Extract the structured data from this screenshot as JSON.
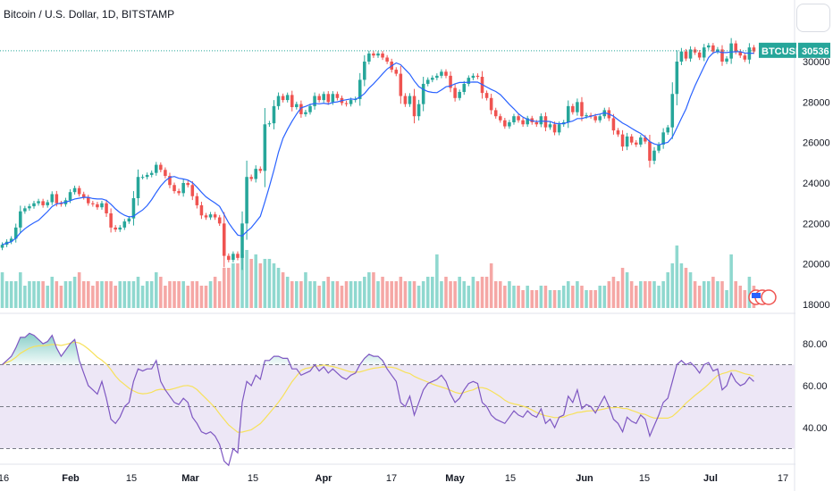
{
  "header": {
    "title": "Bitcoin / U.S. Dollar, 1D, BITSTAMP"
  },
  "price_tag": {
    "symbol": "BTCUSD",
    "price": "30536",
    "color": "#26a69a"
  },
  "colors": {
    "up": "#26a69a",
    "down": "#ef5350",
    "up_volume": "#8fd8cf",
    "down_volume": "#f5a7a5",
    "ma": "#2962ff",
    "rsi": "#7e57c2",
    "rsi_ma": "#f7e15a",
    "rsi_band": "#ede7f6"
  },
  "chart_data": [
    {
      "type": "candlestick",
      "title": "Bitcoin / U.S. Dollar, 1D, BITSTAMP",
      "ylim": [
        17500,
        31500
      ],
      "y_ticks": [
        "30000",
        "28000",
        "26000",
        "24000",
        "22000",
        "20000",
        "18000"
      ],
      "x_ticks": [
        "16",
        "Feb",
        "15",
        "Mar",
        "15",
        "Apr",
        "17",
        "May",
        "15",
        "Jun",
        "15",
        "Jul",
        "17"
      ],
      "last_price": 30536,
      "close": [
        20950,
        21100,
        21250,
        21800,
        22600,
        22750,
        22850,
        23000,
        23100,
        22900,
        23050,
        23450,
        23000,
        22950,
        23150,
        23550,
        23750,
        23450,
        23300,
        23000,
        22950,
        22800,
        23000,
        22500,
        21800,
        21700,
        21800,
        22100,
        22250,
        23250,
        24300,
        24300,
        24400,
        24500,
        24900,
        24650,
        24350,
        23900,
        23600,
        23500,
        24000,
        23900,
        23350,
        22900,
        22400,
        22300,
        22450,
        22300,
        22000,
        20400,
        20200,
        20500,
        20300,
        22000,
        24300,
        24200,
        24700,
        24600,
        26900,
        26950,
        27800,
        28300,
        28100,
        28350,
        27750,
        27900,
        27400,
        27500,
        27800,
        28300,
        28100,
        28400,
        28000,
        28400,
        28200,
        27950,
        27900,
        28100,
        28150,
        29100,
        30000,
        30400,
        30300,
        30400,
        30200,
        30000,
        29600,
        29400,
        28300,
        27900,
        28300,
        27300,
        27900,
        28900,
        29100,
        29200,
        29300,
        29500,
        29300,
        28700,
        28200,
        28500,
        28900,
        29200,
        29300,
        29250,
        28450,
        28200,
        27600,
        27300,
        27100,
        26800,
        27000,
        27300,
        27100,
        26900,
        27200,
        27000,
        26900,
        27300,
        26750,
        26900,
        26500,
        26900,
        27000,
        27800,
        27500,
        28000,
        27300,
        27350,
        27300,
        27100,
        27300,
        27600,
        27200,
        26600,
        26400,
        25800,
        26300,
        26000,
        25900,
        26250,
        26050,
        25100,
        25600,
        25900,
        26500,
        26750,
        28400,
        30000,
        30500,
        30150,
        30600,
        30450,
        30200,
        30700,
        30800,
        30500,
        30600,
        30000,
        30150,
        30900,
        30500,
        30300,
        30100,
        30700,
        30500
      ],
      "volume": [
        0.4,
        0.3,
        0.3,
        0.3,
        0.4,
        0.25,
        0.3,
        0.3,
        0.3,
        0.3,
        0.25,
        0.35,
        0.3,
        0.25,
        0.3,
        0.3,
        0.35,
        0.4,
        0.3,
        0.3,
        0.25,
        0.3,
        0.3,
        0.3,
        0.3,
        0.25,
        0.3,
        0.3,
        0.3,
        0.3,
        0.35,
        0.25,
        0.3,
        0.3,
        0.4,
        0.35,
        0.25,
        0.3,
        0.3,
        0.3,
        0.3,
        0.25,
        0.3,
        0.3,
        0.25,
        0.25,
        0.3,
        0.35,
        0.3,
        0.45,
        0.45,
        0.5,
        0.5,
        0.6,
        0.65,
        0.55,
        0.6,
        0.5,
        0.55,
        0.55,
        0.5,
        0.45,
        0.4,
        0.35,
        0.3,
        0.3,
        0.3,
        0.4,
        0.3,
        0.3,
        0.25,
        0.3,
        0.35,
        0.3,
        0.3,
        0.25,
        0.3,
        0.3,
        0.3,
        0.3,
        0.35,
        0.4,
        0.4,
        0.3,
        0.35,
        0.3,
        0.3,
        0.3,
        0.35,
        0.3,
        0.3,
        0.3,
        0.25,
        0.3,
        0.35,
        0.35,
        0.6,
        0.3,
        0.35,
        0.3,
        0.3,
        0.35,
        0.3,
        0.25,
        0.35,
        0.3,
        0.35,
        0.35,
        0.5,
        0.3,
        0.3,
        0.25,
        0.3,
        0.25,
        0.25,
        0.2,
        0.25,
        0.2,
        0.2,
        0.25,
        0.25,
        0.2,
        0.2,
        0.2,
        0.25,
        0.3,
        0.25,
        0.3,
        0.25,
        0.2,
        0.2,
        0.2,
        0.25,
        0.25,
        0.3,
        0.35,
        0.3,
        0.45,
        0.4,
        0.3,
        0.25,
        0.3,
        0.3,
        0.3,
        0.3,
        0.25,
        0.3,
        0.4,
        0.5,
        0.7,
        0.5,
        0.45,
        0.4,
        0.3,
        0.25,
        0.3,
        0.3,
        0.35,
        0.3,
        0.3,
        0.2,
        0.6,
        0.3,
        0.25,
        0.2,
        0.35,
        0.25
      ]
    },
    {
      "type": "line",
      "title": "RSI",
      "ylim": [
        27,
        91
      ],
      "y_ticks": [
        "80.00",
        "60.00",
        "40.00"
      ],
      "bands": [
        30,
        50,
        70
      ],
      "series": [
        {
          "values": [
            70,
            72,
            74,
            78,
            83,
            83,
            85,
            84,
            82,
            80,
            81,
            84,
            78,
            74,
            77,
            80,
            82,
            72,
            66,
            60,
            58,
            56,
            62,
            54,
            44,
            42,
            45,
            50,
            52,
            62,
            68,
            67,
            68,
            68,
            72,
            62,
            58,
            55,
            52,
            51,
            54,
            52,
            45,
            42,
            38,
            37,
            38,
            36,
            32,
            24,
            22,
            30,
            28,
            52,
            62,
            60,
            65,
            63,
            72,
            72,
            74,
            74,
            73,
            73,
            68,
            68,
            65,
            66,
            67,
            70,
            67,
            69,
            66,
            68,
            66,
            64,
            63,
            65,
            66,
            70,
            73,
            75,
            74,
            74,
            72,
            68,
            65,
            62,
            52,
            50,
            55,
            46,
            52,
            58,
            61,
            62,
            63,
            65,
            62,
            56,
            52,
            54,
            58,
            61,
            62,
            61,
            52,
            50,
            46,
            44,
            43,
            42,
            45,
            48,
            46,
            45,
            48,
            46,
            45,
            49,
            42,
            44,
            40,
            45,
            46,
            55,
            52,
            58,
            49,
            51,
            50,
            47,
            51,
            55,
            50,
            44,
            42,
            38,
            45,
            43,
            42,
            46,
            44,
            36,
            41,
            46,
            52,
            54,
            62,
            70,
            72,
            70,
            71,
            69,
            66,
            70,
            71,
            67,
            68,
            58,
            60,
            66,
            62,
            60,
            61,
            64,
            62
          ]
        }
      ]
    }
  ]
}
